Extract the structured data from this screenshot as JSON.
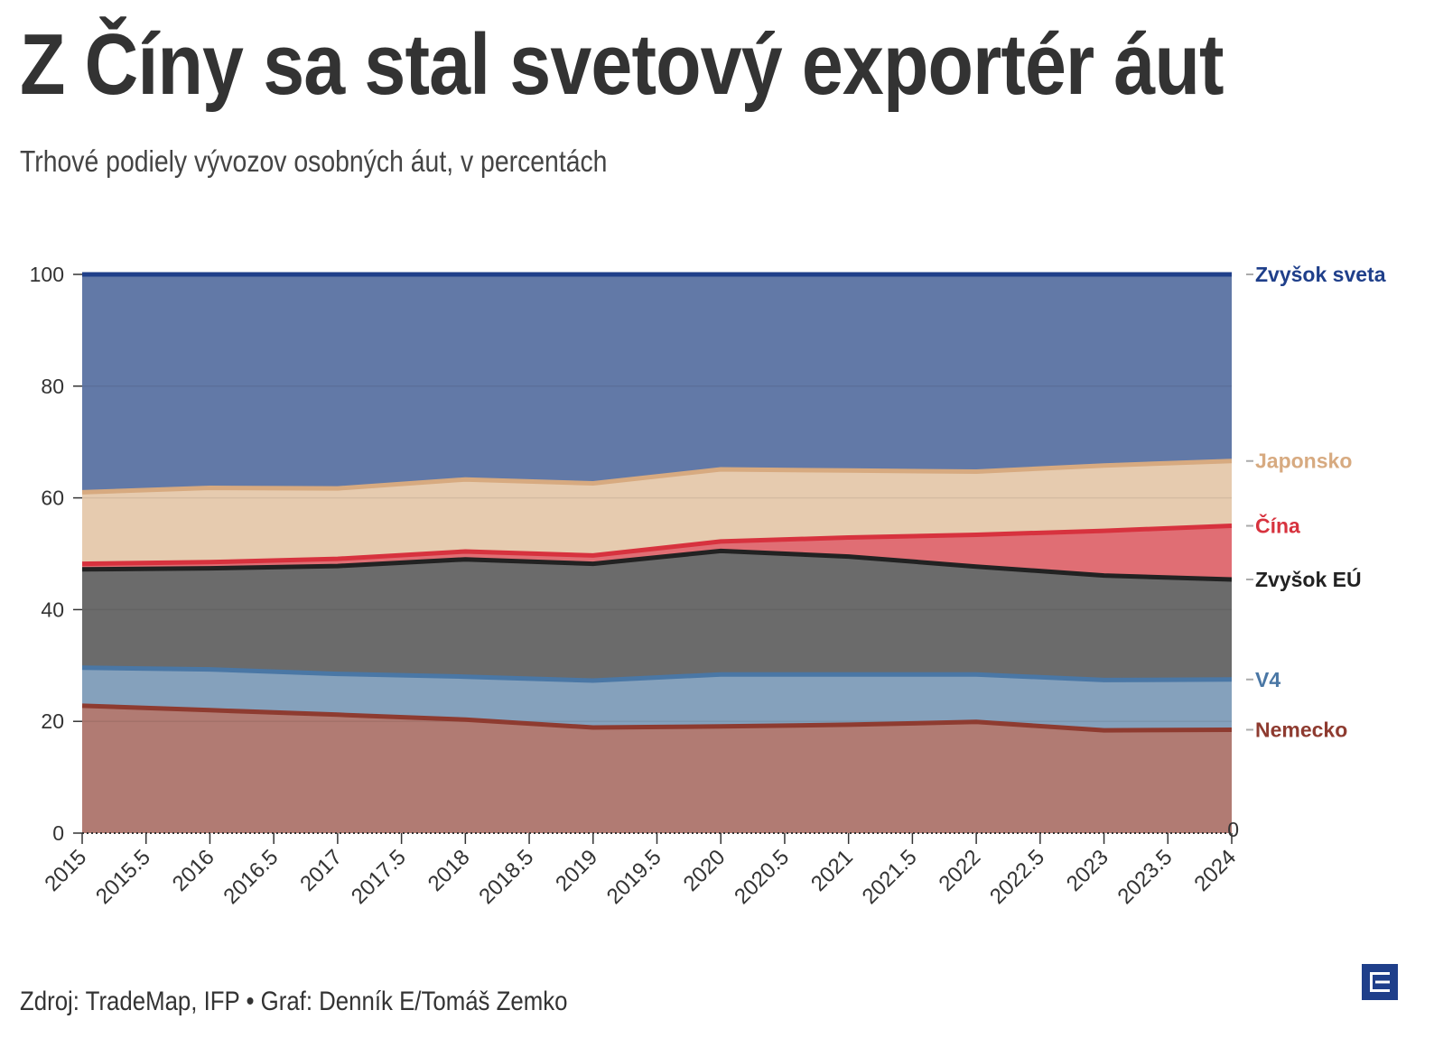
{
  "title": "Z Číny sa stal svetový exportér áut",
  "subtitle": "Trhové podiely vývozov osobných áut, v percentách",
  "source": "Zdroj: TradeMap, IFP • Graf: Denník E/Tomáš Zemko",
  "zero_annotation": "0",
  "logo_icon": "e-logo-icon",
  "chart_data": {
    "type": "area",
    "stacked": true,
    "x": [
      2015,
      2016,
      2017,
      2018,
      2019,
      2020,
      2021,
      2022,
      2023,
      2024
    ],
    "xticks": [
      2015,
      2015.5,
      2016,
      2016.5,
      2017,
      2017.5,
      2018,
      2018.5,
      2019,
      2019.5,
      2020,
      2020.5,
      2021,
      2021.5,
      2022,
      2022.5,
      2023,
      2023.5,
      2024
    ],
    "xtick_labels": [
      "2015",
      "2015.5",
      "2016",
      "2016.5",
      "2017",
      "2017.5",
      "2018",
      "2018.5",
      "2019",
      "2019.5",
      "2020",
      "2020.5",
      "2021",
      "2021.5",
      "2022",
      "2022.5",
      "2023",
      "2023.5",
      "2024"
    ],
    "ylim": [
      0,
      100
    ],
    "yticks": [
      0,
      20,
      40,
      60,
      80,
      100
    ],
    "ytick_labels": [
      "0",
      "20",
      "40",
      "60",
      "80",
      "100"
    ],
    "xlabel": "",
    "ylabel": "",
    "legend": "right",
    "series": [
      {
        "name": "Nemecko",
        "color": "#8e3b30",
        "fill": "#b17b73",
        "values": [
          22.8,
          22.0,
          21.2,
          20.3,
          18.9,
          19.1,
          19.4,
          19.9,
          18.4,
          18.5
        ]
      },
      {
        "name": "V4",
        "color": "#4a77a5",
        "fill": "#85a1bc",
        "values": [
          6.8,
          7.3,
          7.3,
          7.7,
          8.4,
          9.3,
          9.0,
          8.5,
          9.0,
          9.0
        ]
      },
      {
        "name": "Zvyšok EÚ",
        "color": "#222222",
        "fill": "#6b6b6b",
        "values": [
          17.6,
          18.1,
          19.3,
          21.0,
          20.9,
          22.1,
          21.1,
          19.3,
          18.7,
          17.9
        ]
      },
      {
        "name": "Čína",
        "color": "#d7323e",
        "fill": "#e06e74",
        "values": [
          1.0,
          1.1,
          1.3,
          1.4,
          1.5,
          1.7,
          3.4,
          5.7,
          8.0,
          9.6
        ]
      },
      {
        "name": "Japonsko",
        "color": "#d7aa80",
        "fill": "#e6cbaf",
        "values": [
          12.8,
          13.3,
          12.6,
          12.9,
          12.9,
          12.9,
          12.0,
          11.3,
          11.7,
          11.6
        ]
      },
      {
        "name": "Zvyšok sveta",
        "color": "#1f3f8a",
        "fill": "#6279a7",
        "values": [
          39.0,
          38.2,
          38.3,
          36.7,
          37.4,
          34.9,
          35.1,
          35.3,
          34.2,
          33.4
        ]
      }
    ]
  }
}
